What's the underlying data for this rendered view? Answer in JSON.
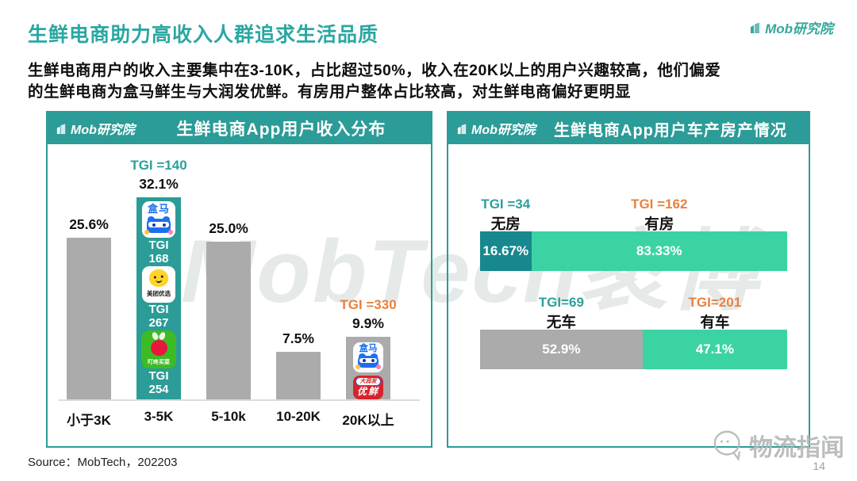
{
  "page": {
    "title": "生鲜电商助力高收入人群追求生活品质",
    "intro_line1": "生鲜电商用户的收入主要集中在3-10K，占比超过50%，收入在20K以上的用户兴趣较高，他们偏爱",
    "intro_line2": "的生鲜电商为盒马鲜生与大润发优鲜。有房用户整体占比较高，对生鲜电商偏好更明显",
    "brand": "Mob研究院",
    "source": "Source：MobTech，202203",
    "page_number": "14",
    "watermark": "MobTech袤博",
    "corner_watermark": "物流指闻"
  },
  "colors": {
    "teal": "#2b9c97",
    "teal_text": "#2d9f9c",
    "dark_teal": "#17888d",
    "green": "#3cd3a4",
    "gray": "#ababab",
    "orange": "#e8813f",
    "black": "#111111"
  },
  "chart_data": [
    {
      "type": "bar",
      "title": "生鲜电商App用户收入分布",
      "categories": [
        "小于3K",
        "3-5K",
        "5-10k",
        "10-20K",
        "20K以上"
      ],
      "values": [
        25.6,
        32.1,
        25.0,
        7.5,
        9.9
      ],
      "value_labels": [
        "25.6%",
        "32.1%",
        "25.0%",
        "7.5%",
        "9.9%"
      ],
      "ylim": [
        0,
        35
      ],
      "grid": false,
      "legend": false,
      "highlight_index": 1,
      "tgi": {
        "1": {
          "text": "TGI =140",
          "color": "teal_text"
        },
        "4": {
          "text": "TGI =330",
          "color": "orange"
        }
      },
      "bar_contents": {
        "1": [
          {
            "icon": "hema",
            "label": "盒马"
          },
          {
            "text": "TGI 168"
          },
          {
            "icon": "meituan-youxuan",
            "label": "美团优选"
          },
          {
            "text": "TGI 267"
          },
          {
            "icon": "dingdong-maicai",
            "label": "叮咚买菜"
          },
          {
            "text": "TGI 254"
          }
        ],
        "4": [
          {
            "icon": "hema",
            "label": "盒马",
            "small": true
          },
          {
            "icon": "rt-mart-youxian",
            "label_top": "大润发",
            "label_bottom": "优鲜",
            "small": true
          }
        ]
      }
    },
    {
      "type": "stacked-bar",
      "orientation": "horizontal",
      "title": "生鲜电商App用户车产房产情况",
      "rows": [
        {
          "segments": [
            {
              "label": "无房",
              "tgi": "TGI =34",
              "tgi_color": "teal_text",
              "value": 16.67,
              "value_label": "16.67%",
              "color": "dark_teal"
            },
            {
              "label": "有房",
              "tgi": "TGI =162",
              "tgi_color": "orange",
              "value": 83.33,
              "value_label": "83.33%",
              "color": "green"
            }
          ]
        },
        {
          "segments": [
            {
              "label": "无车",
              "tgi": "TGI=69",
              "tgi_color": "teal_text",
              "value": 52.9,
              "value_label": "52.9%",
              "color": "gray"
            },
            {
              "label": "有车",
              "tgi": "TGI=201",
              "tgi_color": "orange",
              "value": 47.1,
              "value_label": "47.1%",
              "color": "green"
            }
          ]
        }
      ]
    }
  ]
}
